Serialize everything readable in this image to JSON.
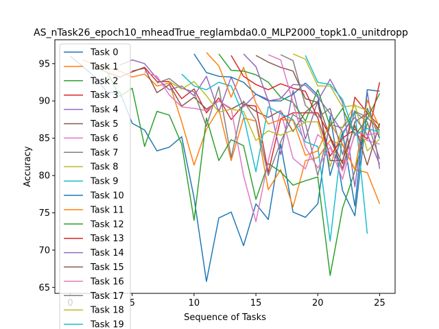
{
  "chart_data": {
    "type": "line",
    "title": "AS_nTask26_epoch10_mheadTrue_reglambda0.0_MLP2000_topk1.0_unitdropp",
    "xlabel": "Sequence of Tasks",
    "ylabel": "Accuracy",
    "xlim": [
      -1.25,
      26.25
    ],
    "ylim": [
      64.2,
      98.2
    ],
    "xticks": [
      0,
      5,
      10,
      15,
      20,
      25
    ],
    "yticks": [
      65,
      70,
      75,
      80,
      85,
      90,
      95
    ],
    "grid": false,
    "legend_position": "upper-left",
    "series": [
      {
        "name": "Task 0",
        "color": "#1f77b4",
        "start": 0,
        "values": [
          96.0,
          94.6,
          93.2,
          91.1,
          91.2,
          87.0,
          86.1,
          83.3,
          83.8,
          85.2,
          77.0,
          65.8,
          74.3,
          75.1,
          70.6,
          76.2,
          74.1,
          84.2,
          75.1,
          74.4,
          76.2,
          88.0,
          78.0,
          74.6,
          89.0,
          85.0
        ]
      },
      {
        "name": "Task 1",
        "color": "#ff7f0e",
        "start": 1,
        "values": [
          95.5,
          94.8,
          94.5,
          94.0,
          93.2,
          93.6,
          92.0,
          92.4,
          87.2,
          81.4,
          86.2,
          88.9,
          82.0,
          87.7,
          87.3,
          78.1,
          80.8,
          75.8,
          82.0,
          82.4,
          84.7,
          84.1,
          80.8,
          80.4,
          76.2
        ]
      },
      {
        "name": "Task 2",
        "color": "#2ca02c",
        "start": 2,
        "values": [
          94.6,
          93.8,
          90.6,
          91.7,
          83.9,
          88.6,
          88.1,
          84.2,
          74.0,
          87.7,
          82.0,
          84.8,
          84.0,
          76.8,
          81.6,
          80.5,
          78.7,
          79.3,
          79.8,
          66.6,
          75.6,
          80.6,
          87.0
        ]
      },
      {
        "name": "Task 3",
        "color": "#d62728",
        "start": 3,
        "values": [
          93.8,
          93.2,
          93.9,
          94.5,
          92.6,
          92.6,
          90.3,
          91.6,
          88.4,
          90.4,
          87.5,
          89.5,
          89.3,
          80.4,
          87.6,
          88.4,
          88.4,
          88.4,
          85.2,
          81.6,
          90.5,
          88.4,
          86.0
        ]
      },
      {
        "name": "Task 4",
        "color": "#9467bd",
        "start": 4,
        "values": [
          94.8,
          95.5,
          95.0,
          93.0,
          91.5,
          92.0,
          90.7,
          93.3,
          88.5,
          93.2,
          89.2,
          90.9,
          90.2,
          82.8,
          91.4,
          84.9,
          90.0,
          92.9,
          89.8,
          78.5,
          91.2,
          80.9
        ]
      },
      {
        "name": "Task 5",
        "color": "#8c564b",
        "start": 5,
        "values": [
          94.0,
          94.4,
          91.1,
          92.2,
          89.3,
          90.5,
          88.9,
          90.0,
          88.9,
          89.8,
          88.6,
          87.8,
          88.7,
          85.9,
          88.5,
          89.9,
          85.0,
          80.9,
          87.2,
          88.3,
          86.7
        ]
      },
      {
        "name": "Task 6",
        "color": "#e377c2",
        "start": 6,
        "values": [
          93.9,
          93.3,
          90.8,
          89.2,
          89.0,
          88.7,
          90.0,
          89.0,
          80.0,
          73.8,
          82.0,
          88.7,
          82.3,
          80.9,
          85.5,
          84.0,
          80.6,
          85.5,
          84.7,
          84.2
        ]
      },
      {
        "name": "Task 7",
        "color": "#7f7f7f",
        "start": 7,
        "values": [
          92.4,
          93.0,
          91.7,
          91.2,
          86.6,
          91.9,
          82.4,
          90.0,
          87.4,
          80.0,
          84.5,
          88.2,
          87.0,
          80.0,
          86.8,
          86.4,
          88.5,
          87.2,
          82.2
        ]
      },
      {
        "name": "Task 8",
        "color": "#bcbd22",
        "start": 8,
        "values": [
          92.6,
          91.6,
          92.6,
          90.7,
          88.5,
          88.9,
          88.6,
          84.7,
          86.0,
          85.4,
          86.1,
          87.2,
          87.2,
          81.2,
          86.5,
          89.5,
          83.3,
          84.9
        ]
      },
      {
        "name": "Task 9",
        "color": "#17becf",
        "start": 9,
        "values": [
          93.6,
          92.0,
          91.5,
          92.5,
          92.0,
          88.0,
          80.5,
          89.2,
          88.3,
          87.5,
          84.5,
          83.9,
          71.2,
          85.4,
          88.7,
          72.2
        ]
      },
      {
        "name": "Task 10",
        "color": "#1f77b4",
        "start": 10,
        "values": [
          96.3,
          93.8,
          93.3,
          93.2,
          92.5,
          90.9,
          90.0,
          90.0,
          90.9,
          92.4,
          90.8,
          80.0,
          85.8,
          75.9,
          91.5,
          91.3
        ]
      },
      {
        "name": "Task 11",
        "color": "#ff7f0e",
        "start": 11,
        "values": [
          96.5,
          94.7,
          90.5,
          94.5,
          89.7,
          86.9,
          87.5,
          87.4,
          82.7,
          83.3,
          87.1,
          84.2,
          80.8,
          90.1,
          86.4
        ]
      },
      {
        "name": "Task 12",
        "color": "#2ca02c",
        "start": 12,
        "values": [
          96.3,
          94.1,
          94.0,
          93.5,
          92.5,
          90.5,
          89.8,
          87.3,
          91.5,
          86.6,
          89.0,
          85.4,
          87.6,
          91.0
        ]
      },
      {
        "name": "Task 13",
        "color": "#d62728",
        "start": 13,
        "values": [
          96.1,
          93.3,
          92.2,
          91.5,
          92.3,
          91.7,
          91.3,
          87.7,
          82.6,
          85.0,
          86.2,
          84.9,
          92.5
        ]
      },
      {
        "name": "Task 14",
        "color": "#9467bd",
        "start": 14,
        "values": [
          96.3,
          94.6,
          90.0,
          90.3,
          92.2,
          92.1,
          90.5,
          88.3,
          85.8,
          87.8,
          85.5,
          81.5
        ]
      },
      {
        "name": "Task 15",
        "color": "#8c564b",
        "start": 15,
        "values": [
          96.1,
          95.2,
          94.5,
          94.0,
          90.3,
          89.8,
          82.0,
          82.0,
          86.7,
          81.4,
          87.0
        ]
      },
      {
        "name": "Task 16",
        "color": "#e377c2",
        "start": 16,
        "values": [
          96.2,
          95.5,
          89.8,
          83.8,
          81.0,
          83.8,
          79.5,
          85.8,
          85.4,
          85.8
        ]
      },
      {
        "name": "Task 17",
        "color": "#7f7f7f",
        "start": 17,
        "values": [
          96.2,
          95.4,
          89.4,
          87.8,
          89.0,
          82.8,
          88.6,
          87.8,
          86.0
        ]
      },
      {
        "name": "Task 18",
        "color": "#bcbd22",
        "start": 18,
        "values": [
          96.3,
          95.6,
          92.0,
          92.0,
          89.2,
          89.4,
          88.7,
          85.4
        ]
      },
      {
        "name": "Task 19",
        "color": "#17becf",
        "start": 19,
        "values": [
          96.1,
          92.5,
          92.2,
          90.2,
          85.5,
          86.3,
          85.8
        ]
      }
    ]
  }
}
